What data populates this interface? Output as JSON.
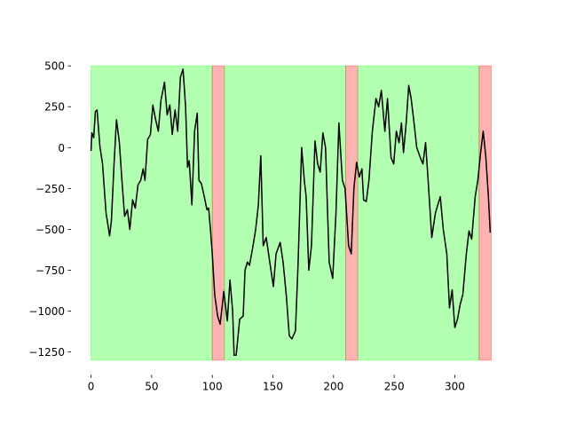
{
  "chart_data": {
    "type": "line",
    "x": [
      0,
      0.7,
      2.2,
      3.6,
      5,
      7.3,
      9.5,
      12.4,
      13.9,
      15.3,
      16.8,
      19,
      21,
      23.4,
      25.5,
      27.7,
      30,
      32,
      34.3,
      36.5,
      38.7,
      41,
      43,
      44.5,
      46.7,
      49,
      51,
      53.3,
      55.5,
      57.7,
      60.6,
      62.8,
      65,
      67,
      69.3,
      71.5,
      73.7,
      75.9,
      78,
      79.6,
      81,
      83.2,
      85.4,
      87.6,
      89,
      91,
      93.4,
      95.6,
      97,
      98.5,
      100,
      102,
      104.4,
      106.5,
      109.5,
      112.4,
      114.6,
      116.8,
      118,
      119.7,
      122.6,
      125.5,
      127,
      129,
      130.7,
      133.6,
      135.8,
      138,
      140,
      142,
      144.5,
      147.4,
      150.4,
      152.6,
      156,
      158.4,
      161,
      163.5,
      165.7,
      168.6,
      170.8,
      173.7,
      175.9,
      177.4,
      179.6,
      181.8,
      184.7,
      186.9,
      189,
      191.2,
      193.4,
      196.4,
      199.3,
      202,
      204.4,
      207.3,
      209.5,
      212.4,
      214.6,
      216.8,
      219,
      221.2,
      223.4,
      224.8,
      227,
      229.2,
      232,
      235,
      237.2,
      239.4,
      242.3,
      244.5,
      247.4,
      249.6,
      251.8,
      254,
      256,
      257.7,
      259.9,
      262,
      264,
      266.4,
      268.6,
      271.5,
      273.7,
      275.9,
      278,
      281,
      284,
      286,
      288,
      290.5,
      293.4,
      295.6,
      297.8,
      300,
      302.2,
      304.4,
      306.6,
      309.5,
      311.7,
      313.9,
      316.8,
      319,
      321,
      323.4,
      325.5,
      327.7,
      329.2
    ],
    "values": [
      -20,
      90,
      60,
      220,
      230,
      10,
      -100,
      -400,
      -470,
      -540,
      -450,
      -100,
      170,
      30,
      -200,
      -420,
      -380,
      -500,
      -320,
      -370,
      -230,
      -200,
      -130,
      -200,
      50,
      80,
      260,
      170,
      100,
      290,
      400,
      200,
      260,
      80,
      230,
      100,
      430,
      480,
      250,
      -120,
      -80,
      -350,
      100,
      210,
      -200,
      -220,
      -300,
      -380,
      -370,
      -500,
      -650,
      -900,
      -1030,
      -1080,
      -880,
      -1060,
      -810,
      -1000,
      -1270,
      -1270,
      -1050,
      -1030,
      -750,
      -700,
      -720,
      -600,
      -500,
      -350,
      -50,
      -600,
      -550,
      -700,
      -850,
      -650,
      -580,
      -700,
      -900,
      -1150,
      -1170,
      -1120,
      -700,
      0,
      -200,
      -300,
      -750,
      -600,
      40,
      -100,
      -150,
      90,
      0,
      -700,
      -800,
      -400,
      150,
      -200,
      -250,
      -600,
      -650,
      -250,
      -90,
      -180,
      -130,
      -320,
      -330,
      -200,
      100,
      300,
      250,
      350,
      100,
      300,
      -60,
      -100,
      100,
      30,
      150,
      -30,
      150,
      380,
      300,
      150,
      0,
      -60,
      -100,
      30,
      -200,
      -550,
      -400,
      -350,
      -300,
      -500,
      -650,
      -980,
      -870,
      -1100,
      -1050,
      -960,
      -900,
      -650,
      -510,
      -560,
      -300,
      -200,
      -50,
      100,
      -50,
      -300,
      -520
    ],
    "color": "#000000",
    "spans": [
      {
        "start": 0,
        "end": 100,
        "color": "#00ff00"
      },
      {
        "start": 100,
        "end": 110,
        "color": "#ff0000"
      },
      {
        "start": 110,
        "end": 210,
        "color": "#00ff00"
      },
      {
        "start": 210,
        "end": 220,
        "color": "#ff0000"
      },
      {
        "start": 220,
        "end": 320,
        "color": "#00ff00"
      },
      {
        "start": 320,
        "end": 330,
        "color": "#ff0000"
      }
    ],
    "span_alpha": 0.3,
    "span_ylim": [
      -1300,
      500
    ],
    "xlim": [
      -16.5,
      346.5
    ],
    "ylim": [
      -1390,
      590
    ],
    "xticks": [
      0,
      50,
      100,
      150,
      200,
      250,
      300
    ],
    "yticks": [
      {
        "value": -1250,
        "label": "−1250"
      },
      {
        "value": -1000,
        "label": "−1000"
      },
      {
        "value": -750,
        "label": "−750"
      },
      {
        "value": -500,
        "label": "−500"
      },
      {
        "value": -250,
        "label": "−250"
      },
      0,
      250,
      500
    ]
  }
}
